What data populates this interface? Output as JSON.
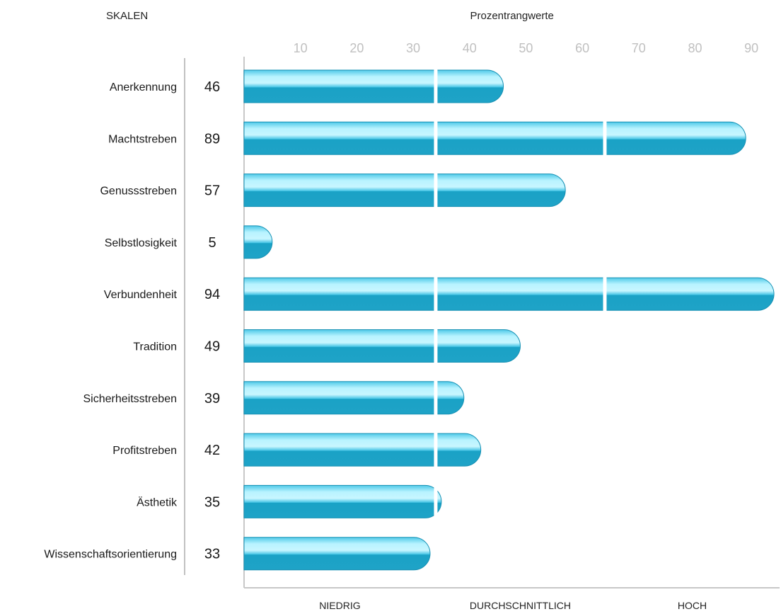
{
  "header": {
    "skalen": "SKALEN",
    "axis_title": "Prozentrangwerte"
  },
  "chart_data": {
    "type": "bar",
    "orientation": "horizontal",
    "title": "",
    "xlabel": "Prozentrangwerte",
    "ylabel": "SKALEN",
    "xlim": [
      0,
      95
    ],
    "x_ticks": [
      10,
      20,
      30,
      40,
      50,
      60,
      70,
      80,
      90
    ],
    "categories": [
      "Anerkennung",
      "Machtstreben",
      "Genussstreben",
      "Selbstlosigkeit",
      "Verbundenheit",
      "Tradition",
      "Sicherheitsstreben",
      "Profitstreben",
      "Ästhetik",
      "Wissenschaftsorientierung"
    ],
    "values": [
      46,
      89,
      57,
      5,
      94,
      49,
      39,
      42,
      35,
      33
    ],
    "zones": [
      {
        "label": "NIEDRIG",
        "from": 0,
        "to": 34
      },
      {
        "label": "DURCHSCHNITTLICH",
        "from": 34,
        "to": 64
      },
      {
        "label": "HOCH",
        "from": 64,
        "to": 95
      }
    ],
    "zone_boundaries": [
      34,
      64
    ],
    "grid": false,
    "colors": {
      "bar_top": "#7fe3f7",
      "bar_mid": "#c8f6ff",
      "bar_bottom": "#1aa2c6",
      "bar_edge": "#1690b3",
      "tick_label": "#c0c0c0",
      "axis": "#c8c8c8"
    }
  }
}
